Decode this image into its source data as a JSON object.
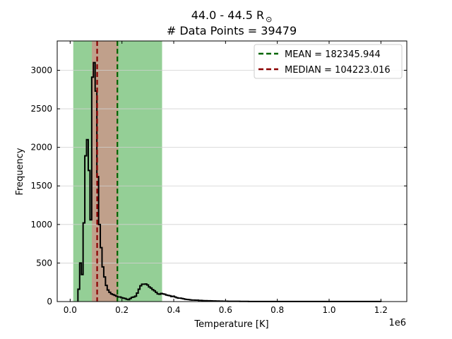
{
  "chart_data": {
    "type": "histogram",
    "title_line1": "44.0 - 44.5 R",
    "title_symbol": "⊙",
    "title_line2": "# Data Points = 39479",
    "xlabel": "Temperature [K]",
    "ylabel": "Frequency",
    "x_offset_label": "1e6",
    "xlim": [
      -50000,
      1300000
    ],
    "ylim": [
      0,
      3380
    ],
    "x_ticks": [
      0,
      200000,
      400000,
      600000,
      800000,
      1000000,
      1200000
    ],
    "x_tick_labels": [
      "0.0",
      "0.2",
      "0.4",
      "0.6",
      "0.8",
      "1.0",
      "1.2"
    ],
    "y_ticks": [
      0,
      500,
      1000,
      1500,
      2000,
      2500,
      3000
    ],
    "y_tick_labels": [
      "0",
      "500",
      "1000",
      "1500",
      "2000",
      "2500",
      "3000"
    ],
    "grid_y": true,
    "legend_position": "upper-right",
    "mean": 182345.944,
    "median": 104223.016,
    "mean_label": "MEAN = 182345.944",
    "median_label": "MEDIAN = 104223.016",
    "mean_band": [
      12000,
      355000
    ],
    "median_band": [
      84000,
      186000
    ],
    "colors": {
      "mean_line": "#006400",
      "median_line": "#8b0000",
      "mean_band": "#4caf50",
      "median_band": "#c49a8a",
      "histogram": "#000000"
    },
    "histogram": {
      "bin_start": 30000,
      "bin_width": 6650,
      "counts": [
        160,
        500,
        350,
        1020,
        1890,
        2100,
        1700,
        1060,
        2910,
        3100,
        2730,
        1620,
        1000,
        700,
        450,
        320,
        210,
        150,
        120,
        100,
        90,
        80,
        70,
        60,
        60,
        50,
        45,
        40,
        30,
        25,
        40,
        55,
        60,
        70,
        110,
        160,
        205,
        225,
        225,
        228,
        215,
        190,
        175,
        155,
        140,
        120,
        100,
        95,
        105,
        100,
        95,
        85,
        80,
        75,
        65,
        70,
        60,
        50,
        45,
        45,
        40,
        35,
        30,
        28,
        25,
        22,
        20,
        20,
        18,
        18,
        15,
        15,
        13,
        12,
        12,
        10,
        10,
        9,
        8,
        8,
        7,
        7,
        6,
        6,
        5,
        5,
        5,
        4,
        4,
        4,
        3,
        3,
        3,
        3,
        2,
        2,
        2,
        2,
        2,
        1,
        1,
        1,
        1,
        1,
        1,
        1,
        1,
        1,
        1,
        1,
        1,
        1,
        1,
        1,
        1,
        1,
        1,
        1,
        1,
        1,
        1,
        1,
        1,
        1,
        1,
        1,
        1,
        1,
        1,
        1,
        1,
        1,
        1,
        1,
        1,
        1,
        1,
        1,
        1,
        1,
        1,
        1,
        1,
        1,
        1,
        1,
        1,
        1,
        1,
        1,
        1,
        1,
        1,
        1,
        1,
        1,
        1,
        1,
        1,
        1,
        1,
        1,
        1,
        1,
        1,
        1,
        1,
        1,
        1,
        1,
        1,
        1,
        1,
        1,
        1,
        1
      ]
    }
  }
}
